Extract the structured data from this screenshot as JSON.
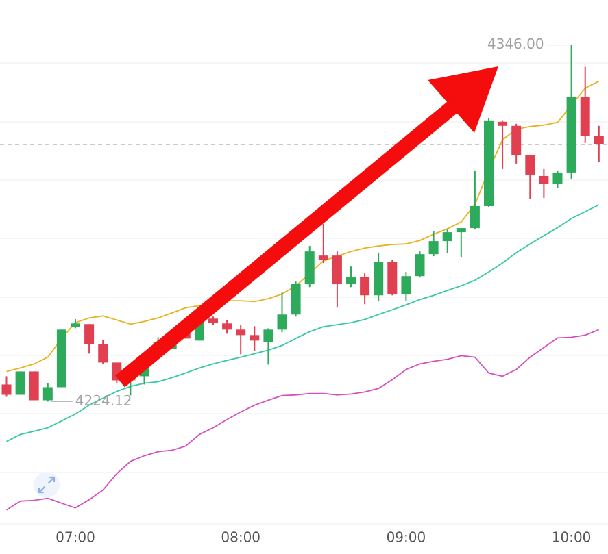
{
  "chart_data": {
    "type": "candlestick",
    "categories": [
      null,
      null,
      null,
      null,
      null,
      "07:00",
      null,
      null,
      null,
      null,
      null,
      null,
      null,
      null,
      null,
      null,
      null,
      "08:00",
      null,
      null,
      null,
      null,
      null,
      null,
      null,
      null,
      null,
      null,
      null,
      "09:00",
      null,
      null,
      null,
      null,
      null,
      null,
      null,
      null,
      null,
      null,
      null,
      "10:00",
      null,
      null
    ],
    "open": [
      4229.97,
      4226.45,
      4234.42,
      4224.58,
      4229.03,
      4249.66,
      4250.6,
      4243.8,
      4237.47,
      4231.38,
      4232.78,
      4242.16,
      4242.16,
      4249.18,
      4244.97,
      4252.47,
      4250.83,
      4248.72,
      4246.84,
      4244.5,
      4248.72,
      4253.88,
      4264.43,
      4274.03,
      4274.03,
      4264.43,
      4266.77,
      4260.44,
      4271.92,
      4260.91,
      4267.0,
      4274.5,
      4278.96,
      4282.0,
      4283.41,
      4290.91,
      4319.74,
      4318.34,
      4308.26,
      4301.22,
      4298.41,
      4302.4,
      4328.18,
      4314.82
    ],
    "high": [
      4232.78,
      4234.42,
      4234.42,
      4230.44,
      4248.72,
      4252.29,
      4250.6,
      4245.2,
      4237.47,
      4235.12,
      4240.75,
      4246.14,
      4247.31,
      4249.18,
      4251.06,
      4253.17,
      4252.0,
      4250.36,
      4249.89,
      4249.18,
      4261.38,
      4265.13,
      4277.32,
      4284.82,
      4275.44,
      4270.28,
      4267.94,
      4274.97,
      4272.63,
      4268.41,
      4275.44,
      4282.47,
      4282.94,
      4283.41,
      4303.1,
      4320.92,
      4320.21,
      4319.04,
      4308.26,
      4303.57,
      4303.1,
      4346.0,
      4338.5,
      4318.34
    ],
    "low": [
      4225.75,
      4226.45,
      4224.58,
      4224.12,
      4229.03,
      4249.18,
      4240.52,
      4237.0,
      4230.44,
      4226.22,
      4229.97,
      4241.04,
      4242.16,
      4245.67,
      4244.97,
      4250.36,
      4247.31,
      4240.28,
      4241.45,
      4236.77,
      4247.78,
      4253.17,
      4263.25,
      4271.46,
      4256.22,
      4263.25,
      4257.39,
      4258.56,
      4260.44,
      4258.56,
      4266.53,
      4273.8,
      4274.97,
      4273.33,
      4282.94,
      4290.44,
      4303.57,
      4305.45,
      4293.26,
      4293.72,
      4297.24,
      4300.05,
      4312.48,
      4305.91
    ],
    "close": [
      4226.45,
      4234.42,
      4224.58,
      4229.03,
      4248.72,
      4250.83,
      4243.8,
      4237.47,
      4231.38,
      4233.25,
      4240.05,
      4244.5,
      4247.31,
      4245.67,
      4251.06,
      4251.06,
      4248.72,
      4246.84,
      4244.97,
      4248.72,
      4253.88,
      4264.43,
      4275.44,
      4272.63,
      4264.43,
      4266.77,
      4260.44,
      4271.92,
      4260.91,
      4267.0,
      4274.5,
      4278.96,
      4282.0,
      4283.41,
      4290.91,
      4320.21,
      4318.34,
      4308.26,
      4301.69,
      4298.41,
      4302.4,
      4328.18,
      4314.82,
      4312.01
    ],
    "up_color": "#2eaa5c",
    "down_color": "#e0404f",
    "series": [
      {
        "color": "#e8b21e",
        "values": [
          4234.4,
          4235.6,
          4237.0,
          4239.3,
          4245.7,
          4251.1,
          4252.7,
          4253.4,
          4252.0,
          4250.6,
          4251.5,
          4252.7,
          4254.4,
          4256.2,
          4256.9,
          4257.6,
          4258.6,
          4258.6,
          4258.3,
          4259.3,
          4260.9,
          4263.7,
          4267.9,
          4272.2,
          4273.8,
          4275.4,
          4276.6,
          4277.3,
          4277.8,
          4278.0,
          4279.2,
          4281.3,
          4283.2,
          4285.5,
          4291.5,
          4303.1,
          4313.6,
          4317.2,
          4318.1,
          4318.6,
          4319.5,
          4325.4,
          4331.2,
          4333.6
        ]
      },
      {
        "color": "#36c9a8",
        "values": [
          4210.5,
          4212.9,
          4214.0,
          4215.2,
          4217.5,
          4219.9,
          4222.9,
          4225.3,
          4227.6,
          4229.3,
          4230.4,
          4230.9,
          4232.3,
          4233.9,
          4235.6,
          4237.0,
          4238.2,
          4239.3,
          4240.5,
          4241.7,
          4243.3,
          4245.7,
          4248.0,
          4249.7,
          4250.4,
          4251.1,
          4252.2,
          4253.9,
          4255.5,
          4257.2,
          4259.0,
          4260.4,
          4262.1,
          4263.7,
          4265.6,
          4268.4,
          4271.5,
          4275.0,
          4278.0,
          4280.8,
          4283.6,
          4286.7,
          4289.0,
          4291.4
        ]
      },
      {
        "color": "#d64fc0",
        "values": [
          4187.1,
          4190.1,
          4190.4,
          4191.1,
          4189.4,
          4187.8,
          4190.6,
          4193.9,
          4199.5,
          4203.7,
          4205.6,
          4207.0,
          4207.5,
          4208.9,
          4212.9,
          4215.2,
          4218.0,
          4220.6,
          4222.9,
          4224.6,
          4226.2,
          4226.4,
          4226.9,
          4226.9,
          4226.4,
          4226.7,
          4227.4,
          4228.6,
          4231.6,
          4235.1,
          4237.0,
          4237.9,
          4238.6,
          4239.8,
          4239.3,
          4233.9,
          4232.8,
          4235.1,
          4239.3,
          4242.6,
          4245.9,
          4246.1,
          4246.8,
          4248.7
        ]
      }
    ],
    "max_label": {
      "value": 4346.0,
      "label": "4346.00"
    },
    "min_label": {
      "value": 4224.12,
      "label": "4224.12"
    },
    "ylim": [
      4180,
      4361.7
    ]
  }
}
